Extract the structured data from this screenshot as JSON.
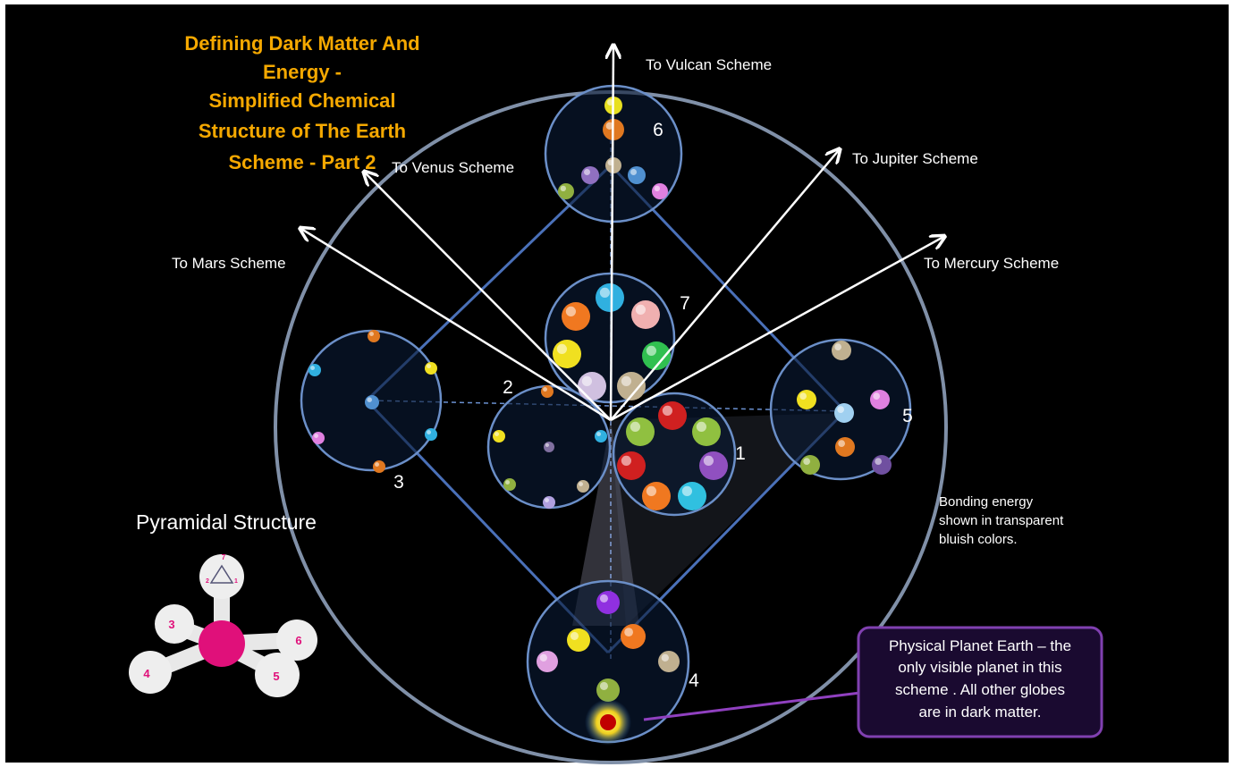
{
  "title_lines": [
    "Defining Dark Matter And",
    "Energy -",
    "Simplified Chemical",
    "Structure of The Earth",
    "Scheme - Part 2"
  ],
  "directions": [
    {
      "label": "To Vulcan Scheme"
    },
    {
      "label": "To Venus Scheme"
    },
    {
      "label": "To Jupiter Scheme"
    },
    {
      "label": "To Mars Scheme"
    },
    {
      "label": "To Mercury Scheme"
    }
  ],
  "globes": [
    {
      "label": "6"
    },
    {
      "label": "7"
    },
    {
      "label": "2"
    },
    {
      "label": "3"
    },
    {
      "label": "1"
    },
    {
      "label": "5"
    },
    {
      "label": "4"
    }
  ],
  "pyramid": {
    "heading": "Pyramidal Structure",
    "labels": [
      "7",
      "2",
      "1",
      "3",
      "6",
      "4",
      "5"
    ]
  },
  "note_lines": [
    "Bonding energy",
    "shown in transparent",
    "bluish colors."
  ],
  "callout_lines": [
    "Physical Planet Earth – the",
    "only visible planet in this",
    "scheme .  All other globes",
    "are in dark matter."
  ]
}
